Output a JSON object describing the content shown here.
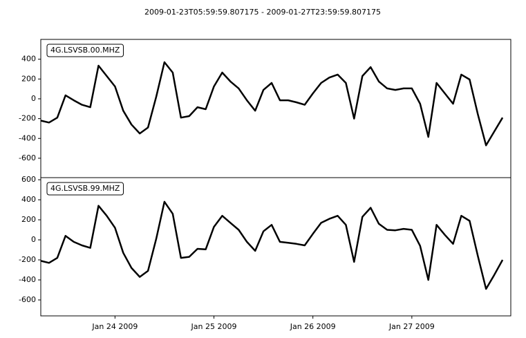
{
  "title": "2009-01-23T05:59:59.807175  -  2009-01-27T23:59:59.807175",
  "chart_data": [
    {
      "type": "line",
      "x": [
        "2009-01-23T06:00",
        "2009-01-23T08:00",
        "2009-01-23T10:00",
        "2009-01-23T12:00",
        "2009-01-23T14:00",
        "2009-01-23T16:00",
        "2009-01-23T18:00",
        "2009-01-23T20:00",
        "2009-01-23T22:00",
        "2009-01-24T00:00",
        "2009-01-24T02:00",
        "2009-01-24T04:00",
        "2009-01-24T06:00",
        "2009-01-24T08:00",
        "2009-01-24T10:00",
        "2009-01-24T12:00",
        "2009-01-24T14:00",
        "2009-01-24T16:00",
        "2009-01-24T18:00",
        "2009-01-24T20:00",
        "2009-01-24T22:00",
        "2009-01-25T00:00",
        "2009-01-25T02:00",
        "2009-01-25T04:00",
        "2009-01-25T06:00",
        "2009-01-25T08:00",
        "2009-01-25T10:00",
        "2009-01-25T12:00",
        "2009-01-25T14:00",
        "2009-01-25T16:00",
        "2009-01-25T18:00",
        "2009-01-25T20:00",
        "2009-01-25T22:00",
        "2009-01-26T00:00",
        "2009-01-26T02:00",
        "2009-01-26T04:00",
        "2009-01-26T06:00",
        "2009-01-26T08:00",
        "2009-01-26T10:00",
        "2009-01-26T12:00",
        "2009-01-26T14:00",
        "2009-01-26T16:00",
        "2009-01-26T18:00",
        "2009-01-26T20:00",
        "2009-01-26T22:00",
        "2009-01-27T00:00",
        "2009-01-27T02:00",
        "2009-01-27T04:00",
        "2009-01-27T06:00",
        "2009-01-27T08:00",
        "2009-01-27T10:00",
        "2009-01-27T12:00",
        "2009-01-27T14:00",
        "2009-01-27T16:00",
        "2009-01-27T18:00",
        "2009-01-27T20:00",
        "2009-01-27T22:00"
      ],
      "series": [
        {
          "name": "4G.LSVSB.00.MHZ",
          "color": "#000000",
          "values": [
            -220,
            -240,
            -190,
            35,
            -15,
            -60,
            -85,
            335,
            230,
            125,
            -120,
            -260,
            -350,
            -290,
            20,
            370,
            265,
            -190,
            -175,
            -85,
            -105,
            125,
            265,
            175,
            105,
            -15,
            -120,
            90,
            160,
            -15,
            -15,
            -35,
            -60,
            55,
            160,
            215,
            245,
            160,
            -200,
            230,
            320,
            175,
            105,
            90,
            105,
            105,
            -50,
            -385,
            160,
            55,
            -50,
            245,
            195,
            -155,
            -470,
            -330,
            -190
          ]
        }
      ],
      "xlim": [
        "2009-01-23T05:59:59.807175",
        "2009-01-27T23:59:59.807175"
      ],
      "ylim": [
        -796,
        600
      ],
      "yticks": [
        -600,
        -400,
        -200,
        0,
        200,
        400
      ]
    },
    {
      "type": "line",
      "x": [
        "2009-01-23T06:00",
        "2009-01-23T08:00",
        "2009-01-23T10:00",
        "2009-01-23T12:00",
        "2009-01-23T14:00",
        "2009-01-23T16:00",
        "2009-01-23T18:00",
        "2009-01-23T20:00",
        "2009-01-23T22:00",
        "2009-01-24T00:00",
        "2009-01-24T02:00",
        "2009-01-24T04:00",
        "2009-01-24T06:00",
        "2009-01-24T08:00",
        "2009-01-24T10:00",
        "2009-01-24T12:00",
        "2009-01-24T14:00",
        "2009-01-24T16:00",
        "2009-01-24T18:00",
        "2009-01-24T20:00",
        "2009-01-24T22:00",
        "2009-01-25T00:00",
        "2009-01-25T02:00",
        "2009-01-25T04:00",
        "2009-01-25T06:00",
        "2009-01-25T08:00",
        "2009-01-25T10:00",
        "2009-01-25T12:00",
        "2009-01-25T14:00",
        "2009-01-25T16:00",
        "2009-01-25T18:00",
        "2009-01-25T20:00",
        "2009-01-25T22:00",
        "2009-01-26T00:00",
        "2009-01-26T02:00",
        "2009-01-26T04:00",
        "2009-01-26T06:00",
        "2009-01-26T08:00",
        "2009-01-26T10:00",
        "2009-01-26T12:00",
        "2009-01-26T14:00",
        "2009-01-26T16:00",
        "2009-01-26T18:00",
        "2009-01-26T20:00",
        "2009-01-26T22:00",
        "2009-01-27T00:00",
        "2009-01-27T02:00",
        "2009-01-27T04:00",
        "2009-01-27T06:00",
        "2009-01-27T08:00",
        "2009-01-27T10:00",
        "2009-01-27T12:00",
        "2009-01-27T14:00",
        "2009-01-27T16:00",
        "2009-01-27T18:00",
        "2009-01-27T20:00",
        "2009-01-27T22:00"
      ],
      "series": [
        {
          "name": "4G.LSVSB.99.MHZ",
          "color": "#000000",
          "values": [
            -210,
            -230,
            -180,
            40,
            -20,
            -55,
            -80,
            340,
            240,
            120,
            -130,
            -280,
            -370,
            -310,
            10,
            380,
            260,
            -180,
            -170,
            -90,
            -95,
            130,
            240,
            170,
            100,
            -20,
            -110,
            85,
            150,
            -20,
            -30,
            -40,
            -55,
            60,
            170,
            210,
            240,
            150,
            -220,
            230,
            320,
            160,
            100,
            95,
            110,
            100,
            -60,
            -400,
            150,
            50,
            -40,
            240,
            190,
            -160,
            -490,
            -350,
            -200
          ]
        }
      ],
      "xlim": [
        "2009-01-23T05:59:59.807175",
        "2009-01-27T23:59:59.807175"
      ],
      "xticks": [
        {
          "value": "2009-01-24T00:00",
          "label": "Jan 24 2009"
        },
        {
          "value": "2009-01-25T00:00",
          "label": "Jan 25 2009"
        },
        {
          "value": "2009-01-26T00:00",
          "label": "Jan 26 2009"
        },
        {
          "value": "2009-01-27T00:00",
          "label": "Jan 27 2009"
        }
      ],
      "ylim": [
        -759,
        621
      ],
      "yticks": [
        -600,
        -400,
        -200,
        0,
        200,
        400,
        600
      ]
    }
  ]
}
